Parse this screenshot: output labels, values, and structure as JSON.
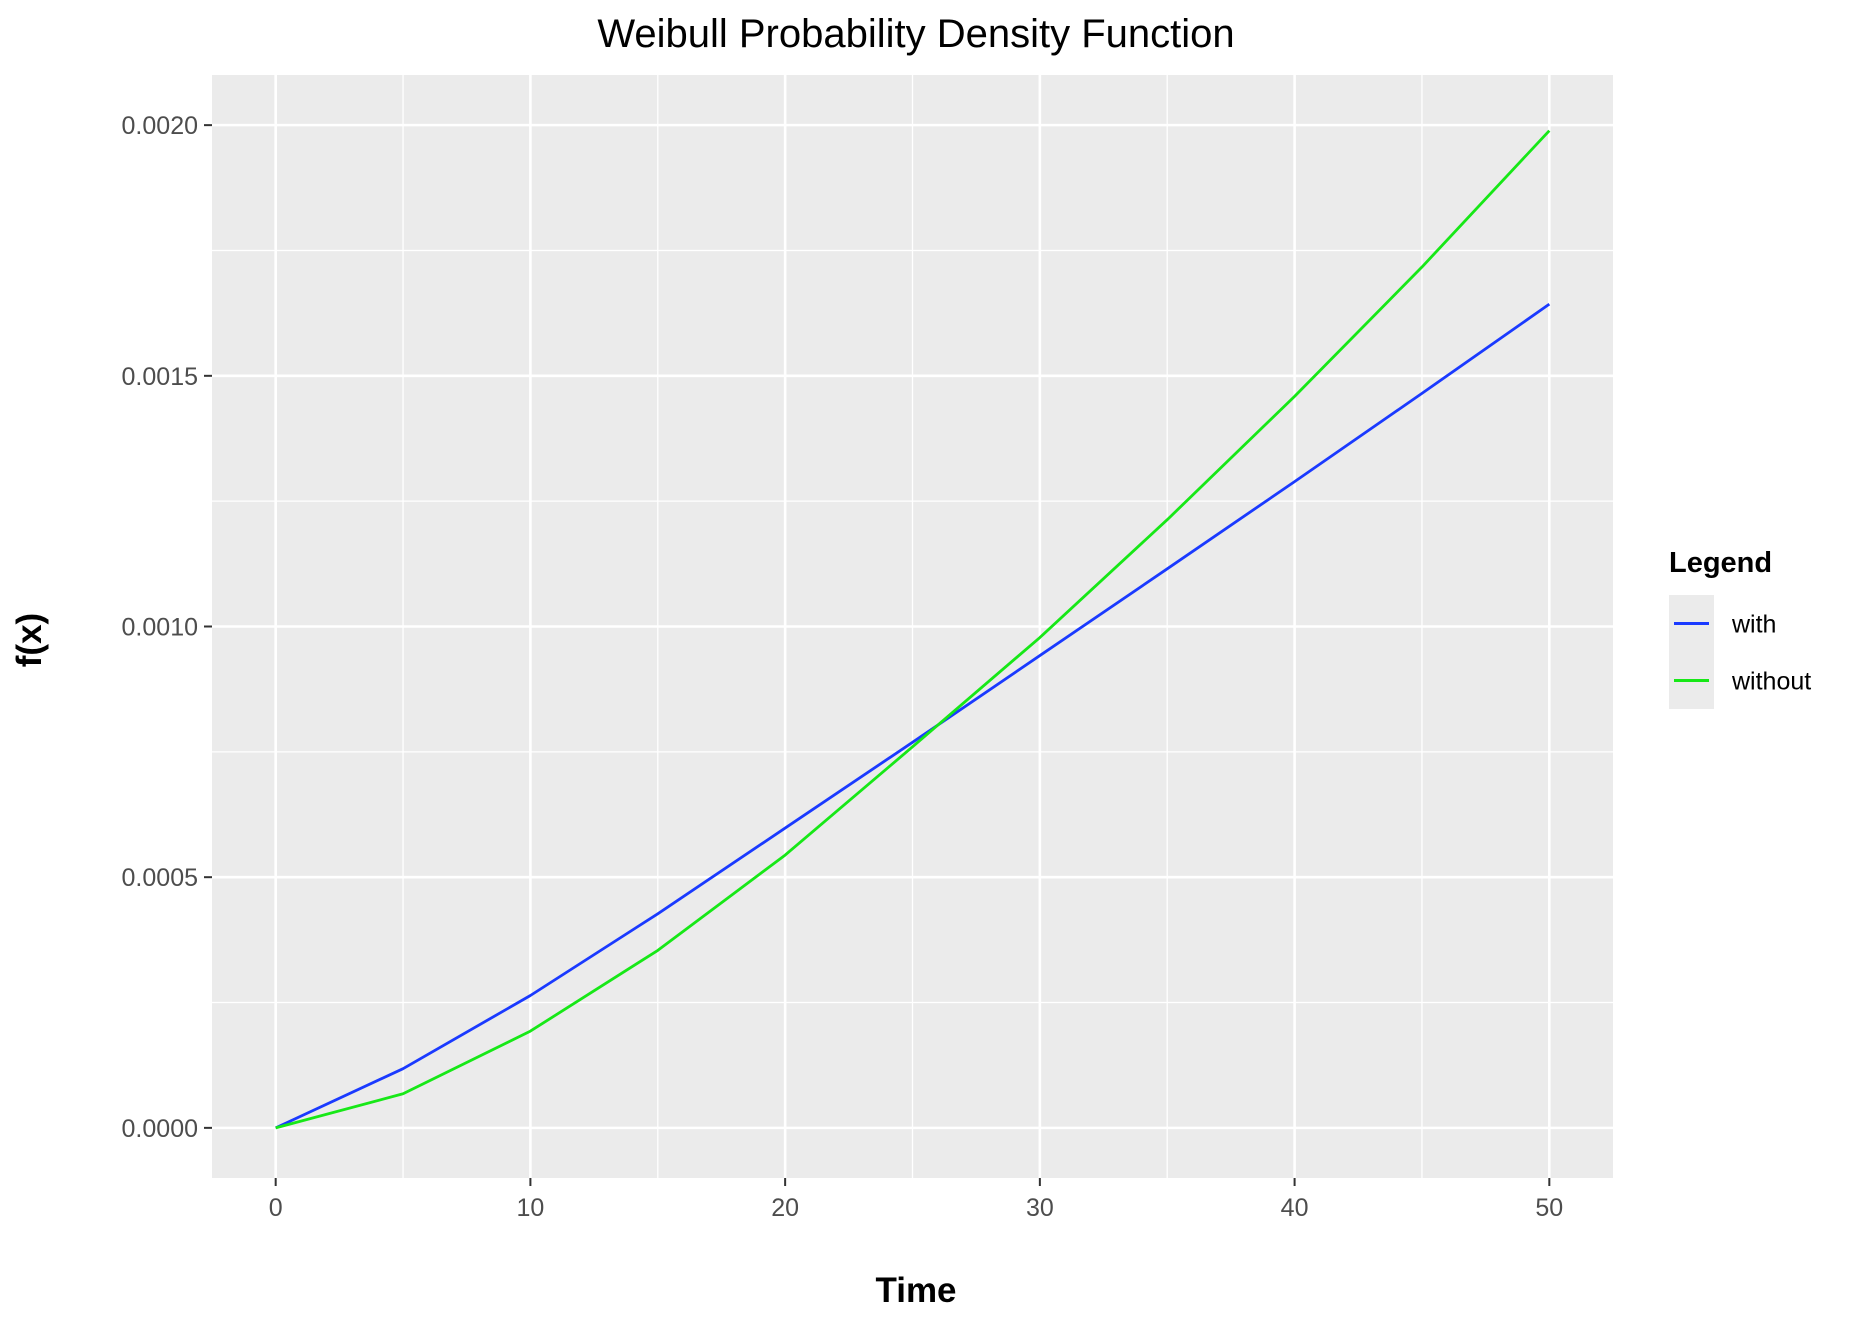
{
  "chart_data": {
    "type": "line",
    "title": "Weibull Probability Density Function",
    "xlabel": "Time",
    "ylabel": "f(x)",
    "xlim": [
      -2.5,
      52.5
    ],
    "ylim": [
      -0.0001,
      0.0021
    ],
    "x_ticks": [
      0,
      10,
      20,
      30,
      40,
      50
    ],
    "x_tick_labels": [
      "0",
      "10",
      "20",
      "30",
      "40",
      "50"
    ],
    "y_ticks": [
      0,
      0.0005,
      0.001,
      0.0015,
      0.002
    ],
    "y_tick_labels": [
      "0.0000",
      "0.0005",
      "0.0010",
      "0.0015",
      "0.0020"
    ],
    "grid": true,
    "legend": {
      "title": "Legend",
      "position": "right"
    },
    "series": [
      {
        "name": "with",
        "color": "#1a3aff",
        "x": [
          0,
          5,
          10,
          15,
          20,
          25,
          30,
          35,
          40,
          45,
          50
        ],
        "y": [
          0,
          0.000118,
          0.000264,
          0.000427,
          0.000598,
          0.000769,
          0.000942,
          0.001115,
          0.001289,
          0.001465,
          0.001643
        ]
      },
      {
        "name": "without",
        "color": "#17e817",
        "x": [
          0,
          5,
          10,
          15,
          20,
          25,
          30,
          35,
          40,
          45,
          50
        ],
        "y": [
          0,
          6.8e-05,
          0.000193,
          0.000354,
          0.000544,
          0.00076,
          0.000978,
          0.001213,
          0.001459,
          0.001717,
          0.001989
        ]
      }
    ]
  }
}
